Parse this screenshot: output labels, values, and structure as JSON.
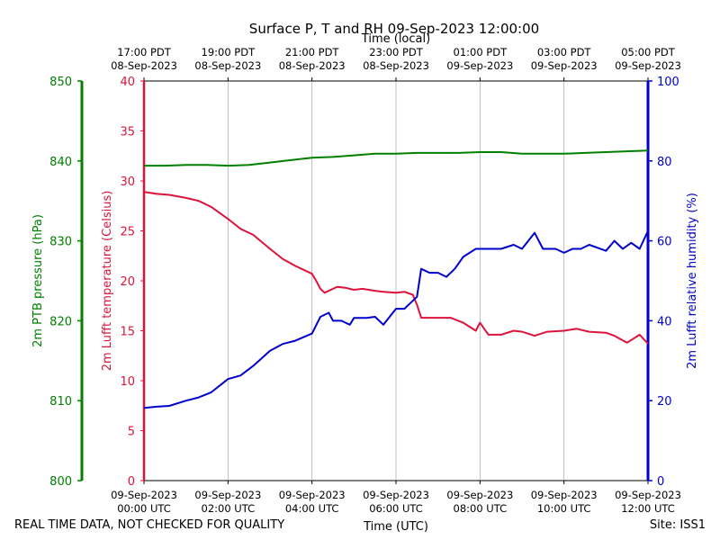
{
  "chart_data": {
    "type": "line",
    "title": "Surface P, T and RH 09-Sep-2023 12:00:00",
    "xlabel_bottom": "Time (UTC)",
    "xlabel_top": "Time (local)",
    "x_ticks_utc": [
      {
        "hours": 0,
        "line1": "09-Sep-2023",
        "line2": "00:00 UTC"
      },
      {
        "hours": 2,
        "line1": "09-Sep-2023",
        "line2": "02:00 UTC"
      },
      {
        "hours": 4,
        "line1": "09-Sep-2023",
        "line2": "04:00 UTC"
      },
      {
        "hours": 6,
        "line1": "09-Sep-2023",
        "line2": "06:00 UTC"
      },
      {
        "hours": 8,
        "line1": "09-Sep-2023",
        "line2": "08:00 UTC"
      },
      {
        "hours": 10,
        "line1": "09-Sep-2023",
        "line2": "10:00 UTC"
      },
      {
        "hours": 12,
        "line1": "09-Sep-2023",
        "line2": "12:00 UTC"
      }
    ],
    "x_ticks_local": [
      {
        "hours": 0,
        "line1": "17:00 PDT",
        "line2": "08-Sep-2023"
      },
      {
        "hours": 2,
        "line1": "19:00 PDT",
        "line2": "08-Sep-2023"
      },
      {
        "hours": 4,
        "line1": "21:00 PDT",
        "line2": "08-Sep-2023"
      },
      {
        "hours": 6,
        "line1": "23:00 PDT",
        "line2": "08-Sep-2023"
      },
      {
        "hours": 8,
        "line1": "01:00 PDT",
        "line2": "09-Sep-2023"
      },
      {
        "hours": 10,
        "line1": "03:00 PDT",
        "line2": "09-Sep-2023"
      },
      {
        "hours": 12,
        "line1": "05:00 PDT",
        "line2": "09-Sep-2023"
      }
    ],
    "xlim_hours": [
      0,
      12
    ],
    "grid": "vertical",
    "axes": {
      "pressure": {
        "label": "2m PTB pressure (hPa)",
        "color": "#008000",
        "ylim": [
          800,
          850
        ],
        "ticks": [
          800,
          810,
          820,
          830,
          840,
          850
        ]
      },
      "temperature": {
        "label": "2m Lufft temperature (Celsius)",
        "color": "#dc143c",
        "ylim": [
          0,
          40
        ],
        "ticks": [
          0,
          5,
          10,
          15,
          20,
          25,
          30,
          35,
          40
        ]
      },
      "humidity": {
        "label": "2m Lufft relative humidity (%)",
        "color": "#0000cd",
        "ylim": [
          0,
          100
        ],
        "ticks": [
          0,
          20,
          40,
          60,
          80,
          100
        ]
      }
    },
    "series": [
      {
        "axis": "pressure",
        "x": [
          0,
          0.5,
          1,
          1.5,
          2,
          2.5,
          3,
          3.5,
          4,
          4.5,
          5,
          5.5,
          6,
          6.5,
          7,
          7.5,
          8,
          8.5,
          9,
          9.5,
          10,
          10.5,
          11,
          11.5,
          12
        ],
        "values": [
          839.4,
          839.4,
          839.5,
          839.5,
          839.4,
          839.5,
          839.8,
          840.1,
          840.4,
          840.5,
          840.7,
          840.9,
          840.9,
          841.0,
          841.0,
          841.0,
          841.1,
          841.1,
          840.9,
          840.9,
          840.9,
          841.0,
          841.1,
          841.2,
          841.3
        ]
      },
      {
        "axis": "temperature",
        "x": [
          0,
          0.3,
          0.6,
          1,
          1.3,
          1.6,
          2,
          2.3,
          2.6,
          3,
          3.3,
          3.6,
          4,
          4.1,
          4.2,
          4.3,
          4.5,
          4.6,
          4.8,
          5,
          5.2,
          5.5,
          5.7,
          6,
          6.2,
          6.4,
          6.5,
          6.6,
          6.8,
          7,
          7.3,
          7.6,
          7.9,
          8,
          8.2,
          8.5,
          8.8,
          9,
          9.3,
          9.6,
          10,
          10.3,
          10.6,
          11,
          11.2,
          11.5,
          11.8,
          12
        ],
        "values": [
          28.9,
          28.7,
          28.6,
          28.3,
          28.0,
          27.4,
          26.2,
          25.2,
          24.6,
          23.2,
          22.2,
          21.5,
          20.7,
          20.0,
          19.2,
          18.8,
          19.2,
          19.4,
          19.3,
          19.1,
          19.2,
          19.0,
          18.9,
          18.8,
          18.9,
          18.6,
          17.6,
          16.3,
          16.3,
          16.3,
          16.3,
          15.8,
          15.0,
          15.8,
          14.6,
          14.6,
          15.0,
          14.9,
          14.5,
          14.9,
          15.0,
          15.2,
          14.9,
          14.8,
          14.5,
          13.8,
          14.6,
          13.7
        ]
      },
      {
        "axis": "humidity",
        "x": [
          0,
          0.3,
          0.6,
          1,
          1.3,
          1.6,
          2,
          2.3,
          2.6,
          3,
          3.3,
          3.6,
          4,
          4.2,
          4.4,
          4.5,
          4.7,
          4.9,
          5,
          5.3,
          5.5,
          5.7,
          6,
          6.2,
          6.4,
          6.5,
          6.6,
          6.8,
          7,
          7.2,
          7.4,
          7.6,
          7.9,
          8,
          8.2,
          8.5,
          8.8,
          9,
          9.3,
          9.5,
          9.8,
          10,
          10.2,
          10.4,
          10.6,
          11,
          11.2,
          11.4,
          11.6,
          11.8,
          12
        ],
        "values": [
          18.2,
          18.5,
          18.7,
          20,
          20.8,
          22.1,
          25.4,
          26.3,
          28.7,
          32.5,
          34.2,
          35.0,
          36.8,
          41,
          42,
          40,
          40,
          39,
          40.7,
          40.7,
          41,
          39.0,
          43,
          43,
          45,
          46,
          53,
          52,
          52,
          51,
          53,
          56,
          58,
          58,
          58,
          58,
          59,
          58,
          62,
          58,
          58,
          57,
          58,
          58,
          59,
          57.5,
          60,
          58,
          59.5,
          58,
          62.5
        ]
      }
    ]
  },
  "footer": {
    "left_text": "REAL TIME DATA, NOT CHECKED FOR QUALITY",
    "right_text": "Site: ISS1"
  }
}
